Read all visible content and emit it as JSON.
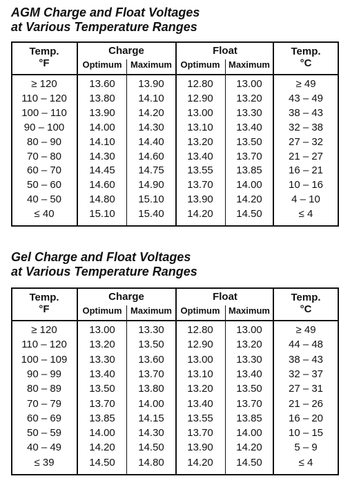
{
  "tables": [
    {
      "title": [
        "AGM Charge and Float Voltages",
        "at Various Temperature Ranges"
      ],
      "headers": {
        "temp_f": [
          "Temp.",
          "°F"
        ],
        "charge": "Charge",
        "float": "Float",
        "temp_c": [
          "Temp.",
          "°C"
        ],
        "sub": [
          "Optimum",
          "Maximum",
          "Optimum",
          "Maximum"
        ]
      },
      "rows": [
        [
          "≥ 120",
          "13.60",
          "13.90",
          "12.80",
          "13.00",
          "≥ 49"
        ],
        [
          "110 – 120",
          "13.80",
          "14.10",
          "12.90",
          "13.20",
          "43 – 49"
        ],
        [
          "100 – 110",
          "13.90",
          "14.20",
          "13.00",
          "13.30",
          "38 – 43"
        ],
        [
          "90 – 100",
          "14.00",
          "14.30",
          "13.10",
          "13.40",
          "32 – 38"
        ],
        [
          "80 – 90",
          "14.10",
          "14.40",
          "13.20",
          "13.50",
          "27 – 32"
        ],
        [
          "70 – 80",
          "14.30",
          "14.60",
          "13.40",
          "13.70",
          "21 – 27"
        ],
        [
          "60 – 70",
          "14.45",
          "14.75",
          "13.55",
          "13.85",
          "16 – 21"
        ],
        [
          "50 – 60",
          "14.60",
          "14.90",
          "13.70",
          "14.00",
          "10 – 16"
        ],
        [
          "40 – 50",
          "14.80",
          "15.10",
          "13.90",
          "14.20",
          "4 – 10"
        ],
        [
          "≤ 40",
          "15.10",
          "15.40",
          "14.20",
          "14.50",
          "≤ 4"
        ]
      ]
    },
    {
      "title": [
        "Gel Charge and Float Voltages",
        "at Various Temperature Ranges"
      ],
      "headers": {
        "temp_f": [
          "Temp.",
          "°F"
        ],
        "charge": "Charge",
        "float": "Float",
        "temp_c": [
          "Temp.",
          "°C"
        ],
        "sub": [
          "Optimum",
          "Maximum",
          "Optimum",
          "Maximum"
        ]
      },
      "rows": [
        [
          "≥ 120",
          "13.00",
          "13.30",
          "12.80",
          "13.00",
          "≥ 49"
        ],
        [
          "110 – 120",
          "13.20",
          "13.50",
          "12.90",
          "13.20",
          "44 – 48"
        ],
        [
          "100 – 109",
          "13.30",
          "13.60",
          "13.00",
          "13.30",
          "38 – 43"
        ],
        [
          "90 – 99",
          "13.40",
          "13.70",
          "13.10",
          "13.40",
          "32 – 37"
        ],
        [
          "80 – 89",
          "13.50",
          "13.80",
          "13.20",
          "13.50",
          "27 – 31"
        ],
        [
          "70 – 79",
          "13.70",
          "14.00",
          "13.40",
          "13.70",
          "21 – 26"
        ],
        [
          "60 – 69",
          "13.85",
          "14.15",
          "13.55",
          "13.85",
          "16 – 20"
        ],
        [
          "50 – 59",
          "14.00",
          "14.30",
          "13.70",
          "14.00",
          "10 – 15"
        ],
        [
          "40 – 49",
          "14.20",
          "14.50",
          "13.90",
          "14.20",
          "5 – 9"
        ],
        [
          "≤ 39",
          "14.50",
          "14.80",
          "14.20",
          "14.50",
          "≤ 4"
        ]
      ]
    }
  ]
}
